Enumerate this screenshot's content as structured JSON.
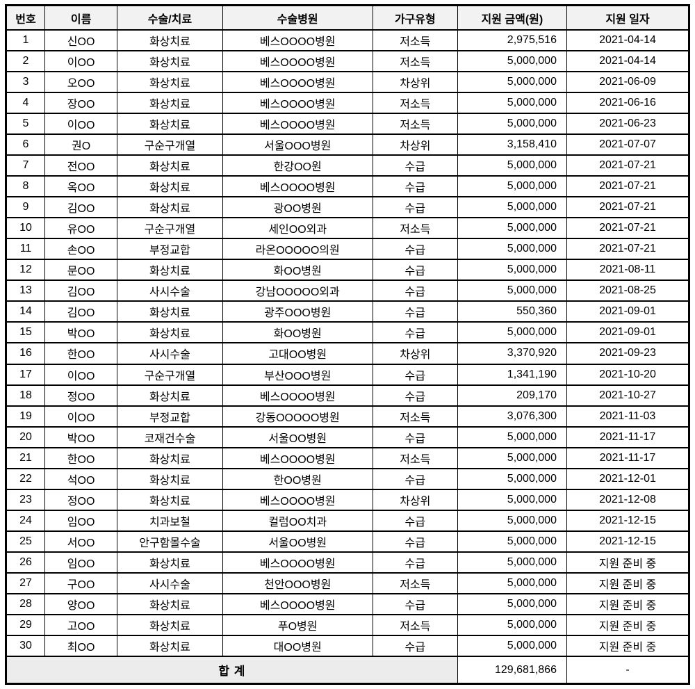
{
  "table": {
    "columns": [
      "번호",
      "이름",
      "수술/치료",
      "수술병원",
      "가구유형",
      "지원 금액(원)",
      "지원 일자"
    ],
    "rows": [
      [
        "1",
        "신OO",
        "화상치료",
        "베스OOOO병원",
        "저소득",
        "2,975,516",
        "2021-04-14"
      ],
      [
        "2",
        "이OO",
        "화상치료",
        "베스OOOO병원",
        "저소득",
        "5,000,000",
        "2021-04-14"
      ],
      [
        "3",
        "오OO",
        "화상치료",
        "베스OOOO병원",
        "차상위",
        "5,000,000",
        "2021-06-09"
      ],
      [
        "4",
        "장OO",
        "화상치료",
        "베스OOOO병원",
        "저소득",
        "5,000,000",
        "2021-06-16"
      ],
      [
        "5",
        "이OO",
        "화상치료",
        "베스OOOO병원",
        "저소득",
        "5,000,000",
        "2021-06-23"
      ],
      [
        "6",
        "권O",
        "구순구개열",
        "서울OOO병원",
        "차상위",
        "3,158,410",
        "2021-07-07"
      ],
      [
        "7",
        "전OO",
        "화상치료",
        "한강OO원",
        "수급",
        "5,000,000",
        "2021-07-21"
      ],
      [
        "8",
        "옥OO",
        "화상치료",
        "베스OOOO병원",
        "수급",
        "5,000,000",
        "2021-07-21"
      ],
      [
        "9",
        "김OO",
        "화상치료",
        "광OO병원",
        "수급",
        "5,000,000",
        "2021-07-21"
      ],
      [
        "10",
        "유OO",
        "구순구개열",
        "세인OO외과",
        "저소득",
        "5,000,000",
        "2021-07-21"
      ],
      [
        "11",
        "손OO",
        "부정교합",
        "라온OOOOO의원",
        "수급",
        "5,000,000",
        "2021-07-21"
      ],
      [
        "12",
        "문OO",
        "화상치료",
        "화OO병원",
        "수급",
        "5,000,000",
        "2021-08-11"
      ],
      [
        "13",
        "김OO",
        "사시수술",
        "강남OOOOO외과",
        "수급",
        "5,000,000",
        "2021-08-25"
      ],
      [
        "14",
        "김OO",
        "화상치료",
        "광주OOO병원",
        "수급",
        "550,360",
        "2021-09-01"
      ],
      [
        "15",
        "박OO",
        "화상치료",
        "화OO병원",
        "수급",
        "5,000,000",
        "2021-09-01"
      ],
      [
        "16",
        "한OO",
        "사시수술",
        "고대OO병원",
        "차상위",
        "3,370,920",
        "2021-09-23"
      ],
      [
        "17",
        "이OO",
        "구순구개열",
        "부산OOO병원",
        "수급",
        "1,341,190",
        "2021-10-20"
      ],
      [
        "18",
        "정OO",
        "화상치료",
        "베스OOOO병원",
        "수급",
        "209,170",
        "2021-10-27"
      ],
      [
        "19",
        "이OO",
        "부정교합",
        "강동OOOOO병원",
        "저소득",
        "3,076,300",
        "2021-11-03"
      ],
      [
        "20",
        "박OO",
        "코재건수술",
        "서울OO병원",
        "수급",
        "5,000,000",
        "2021-11-17"
      ],
      [
        "21",
        "한OO",
        "화상치료",
        "베스OOOO병원",
        "저소득",
        "5,000,000",
        "2021-11-17"
      ],
      [
        "22",
        "석OO",
        "화상치료",
        "한OO병원",
        "수급",
        "5,000,000",
        "2021-12-01"
      ],
      [
        "23",
        "정OO",
        "화상치료",
        "베스OOOO병원",
        "차상위",
        "5,000,000",
        "2021-12-08"
      ],
      [
        "24",
        "임OO",
        "치과보철",
        "컬럼OO치과",
        "수급",
        "5,000,000",
        "2021-12-15"
      ],
      [
        "25",
        "서OO",
        "안구함몰수술",
        "서울OO병원",
        "수급",
        "5,000,000",
        "2021-12-15"
      ],
      [
        "26",
        "임OO",
        "화상치료",
        "베스OOOO병원",
        "수급",
        "5,000,000",
        "지원 준비 중"
      ],
      [
        "27",
        "구OO",
        "사시수술",
        "천안OOO병원",
        "저소득",
        "5,000,000",
        "지원 준비 중"
      ],
      [
        "28",
        "양OO",
        "화상치료",
        "베스OOOO병원",
        "수급",
        "5,000,000",
        "지원 준비 중"
      ],
      [
        "29",
        "고OO",
        "화상치료",
        "푸O병원",
        "저소득",
        "5,000,000",
        "지원 준비 중"
      ],
      [
        "30",
        "최OO",
        "화상치료",
        "대OO병원",
        "수급",
        "5,000,000",
        "지원 준비 중"
      ]
    ],
    "footer": {
      "label": "합 계",
      "amount": "129,681,866",
      "date": "-"
    }
  },
  "colors": {
    "border": "#000000",
    "header_bg": "#f2f2f2",
    "footer_label_bg": "#ececec",
    "row_bg": "#ffffff",
    "text": "#000000"
  }
}
